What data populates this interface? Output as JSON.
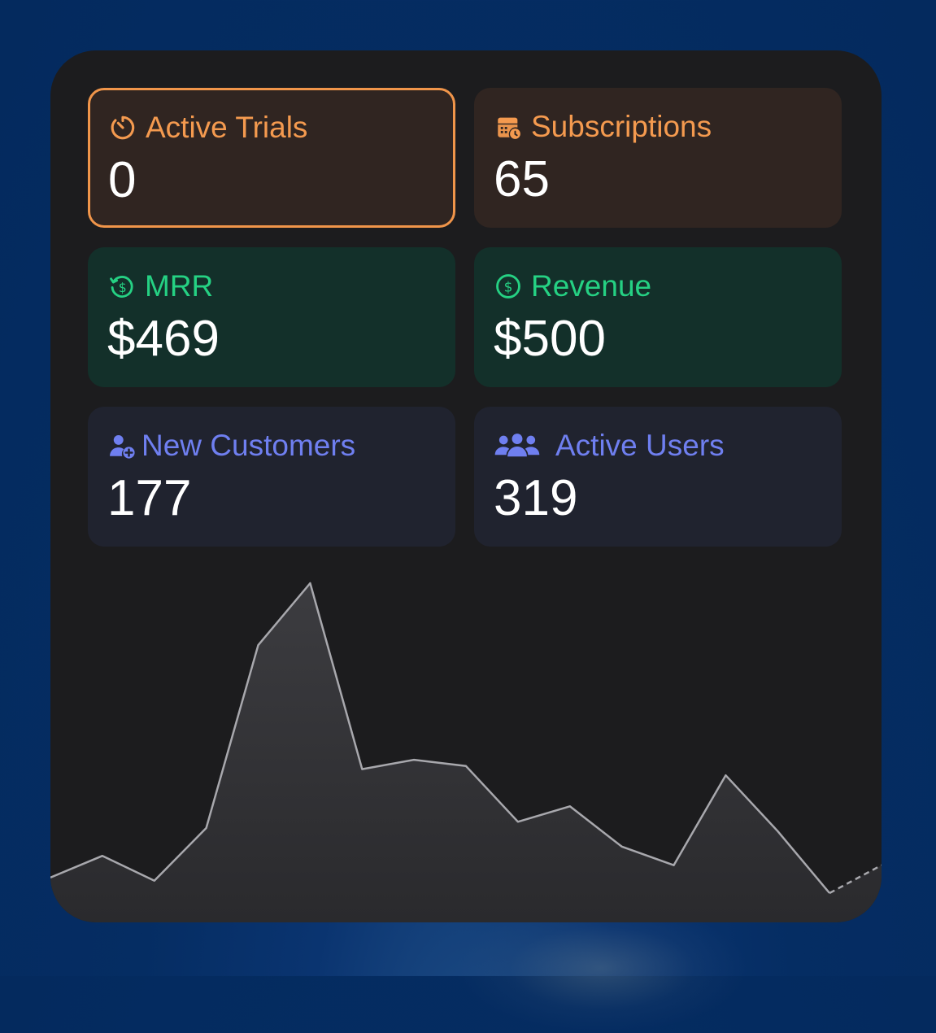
{
  "tiles": [
    {
      "label": "Active Trials",
      "value": "0",
      "icon": "timer-icon",
      "theme": "orange",
      "selected": true
    },
    {
      "label": "Subscriptions",
      "value": "65",
      "icon": "calendar-clock-icon",
      "theme": "orange",
      "selected": false
    },
    {
      "label": "MRR",
      "value": "$469",
      "icon": "recurring-dollar-icon",
      "theme": "green",
      "selected": false
    },
    {
      "label": "Revenue",
      "value": "$500",
      "icon": "dollar-circle-icon",
      "theme": "green",
      "selected": false
    },
    {
      "label": "New Customers",
      "value": "177",
      "icon": "person-add-icon",
      "theme": "blue",
      "selected": false
    },
    {
      "label": "Active Users",
      "value": "319",
      "icon": "people-icon",
      "theme": "blue",
      "selected": false
    }
  ],
  "colors": {
    "orange": "#f49a4f",
    "green": "#25d183",
    "blue": "#6f7ff0",
    "line": "#a8a8ad"
  },
  "chart_data": {
    "type": "area",
    "x": [
      1,
      2,
      3,
      4,
      5,
      6,
      7,
      8,
      9,
      10,
      11,
      12,
      13,
      14,
      15,
      16,
      17
    ],
    "values": [
      5,
      12,
      4,
      21,
      80,
      100,
      40,
      43,
      41,
      23,
      28,
      15,
      9,
      38,
      20,
      0,
      9
    ],
    "projected_from_index": 15,
    "ylim": [
      -5,
      100
    ],
    "grid": false
  }
}
